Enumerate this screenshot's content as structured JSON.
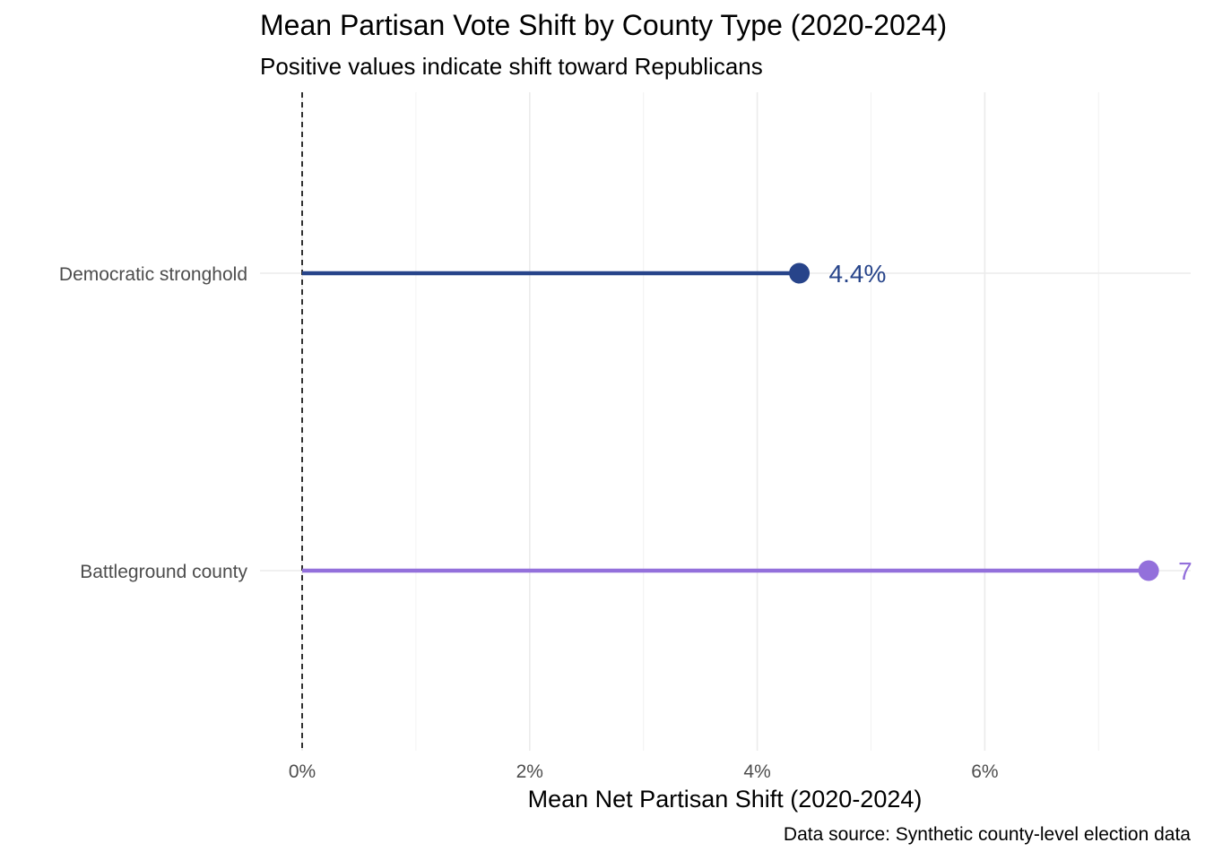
{
  "chart_data": {
    "type": "lollipop",
    "title": "Mean Partisan Vote Shift by County Type (2020-2024)",
    "subtitle": "Positive values indicate shift toward Republicans",
    "xlabel": "Mean Net Partisan Shift (2020-2024)",
    "ylabel": "",
    "caption": "Data source: Synthetic county-level election data",
    "xlim": [
      0,
      7.4
    ],
    "x_ticks": [
      0,
      2,
      4,
      6
    ],
    "x_tick_labels": [
      "0%",
      "2%",
      "4%",
      "6%"
    ],
    "grid": true,
    "reference_line": 0,
    "categories": [
      "Democratic stronghold",
      "Battleground county"
    ],
    "values": [
      4.37,
      7.44
    ],
    "value_labels": [
      "4.4%",
      "7"
    ],
    "colors": [
      "#27448a",
      "#9370db"
    ]
  }
}
